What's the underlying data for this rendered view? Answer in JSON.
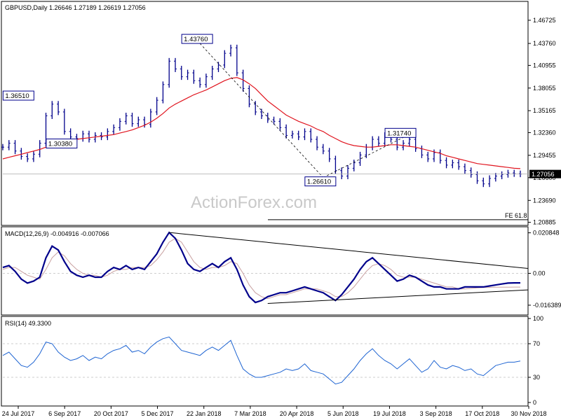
{
  "header": {
    "symbol_line": "GBPUSD,Daily  1.26646 1.27189 1.26619 1.27056"
  },
  "watermark": "ActionForex.com",
  "colors": {
    "price_bar": "#00008b",
    "ma": "#e0141e",
    "macd": "#00008b",
    "signal": "#c8a0a0",
    "rsi": "#1e64d2",
    "grid": "#bdbdbd",
    "label_bg": "#ffffff",
    "label_border": "#00008b",
    "trend_line": "#000000"
  },
  "chart_data": [
    {
      "type": "line",
      "name": "price",
      "title": "GBPUSD,Daily  1.26646 1.27189 1.26619 1.27056",
      "ylim": [
        1.2085,
        1.486
      ],
      "y_ticks": [
        "1.46725",
        "1.43760",
        "1.40955",
        "1.38055",
        "1.35165",
        "1.32360",
        "1.29455",
        "1.26600",
        "1.23690",
        "1.20885"
      ],
      "x_ticks": [
        "24 Jul 2017",
        "6 Sep 2017",
        "20 Oct 2017",
        "5 Dec 2017",
        "22 Jan 2018",
        "7 Mar 2018",
        "20 Apr 2018",
        "5 Jun 2018",
        "19 Jul 2018",
        "3 Sep 2018",
        "17 Oct 2018",
        "30 Nov 2018"
      ],
      "x": [
        0,
        4,
        8,
        12,
        16,
        20,
        24,
        28,
        32,
        36,
        40,
        44,
        48,
        52,
        56,
        60,
        64,
        68,
        72,
        76,
        80,
        84,
        88,
        92,
        96,
        100,
        104,
        108,
        112,
        116,
        120,
        124,
        128,
        132,
        136,
        140,
        144,
        148,
        152,
        156,
        160,
        164,
        168,
        172,
        176,
        180,
        184,
        188,
        192,
        196,
        200,
        204,
        208,
        212,
        216,
        220,
        224,
        228,
        232,
        236,
        240,
        244,
        248,
        252,
        256,
        260,
        264,
        268,
        272,
        276,
        280,
        284,
        288,
        292,
        296,
        300,
        304,
        308,
        312,
        316,
        320,
        324,
        328,
        332,
        336
      ],
      "close": [
        1.305,
        1.31,
        1.3,
        1.293,
        1.29,
        1.296,
        1.31,
        1.345,
        1.36,
        1.35,
        1.325,
        1.318,
        1.316,
        1.322,
        1.315,
        1.32,
        1.318,
        1.325,
        1.33,
        1.338,
        1.345,
        1.335,
        1.34,
        1.334,
        1.35,
        1.365,
        1.385,
        1.415,
        1.405,
        1.395,
        1.4,
        1.39,
        1.385,
        1.395,
        1.405,
        1.41,
        1.425,
        1.432,
        1.4,
        1.38,
        1.36,
        1.35,
        1.345,
        1.34,
        1.338,
        1.33,
        1.32,
        1.322,
        1.318,
        1.325,
        1.315,
        1.305,
        1.3,
        1.29,
        1.275,
        1.268,
        1.278,
        1.285,
        1.295,
        1.305,
        1.315,
        1.31,
        1.32,
        1.315,
        1.305,
        1.31,
        1.315,
        1.303,
        1.295,
        1.29,
        1.298,
        1.288,
        1.282,
        1.285,
        1.28,
        1.275,
        1.27,
        1.262,
        1.258,
        1.265,
        1.268,
        1.27,
        1.272,
        1.271,
        1.2706
      ],
      "ma50": [
        1.29,
        1.292,
        1.294,
        1.296,
        1.298,
        1.3,
        1.302,
        1.305,
        1.308,
        1.311,
        1.313,
        1.314,
        1.315,
        1.316,
        1.317,
        1.318,
        1.319,
        1.32,
        1.321,
        1.323,
        1.325,
        1.327,
        1.33,
        1.333,
        1.337,
        1.342,
        1.348,
        1.355,
        1.36,
        1.364,
        1.368,
        1.372,
        1.375,
        1.378,
        1.382,
        1.386,
        1.39,
        1.393,
        1.394,
        1.391,
        1.386,
        1.38,
        1.372,
        1.364,
        1.358,
        1.352,
        1.346,
        1.342,
        1.338,
        1.335,
        1.332,
        1.328,
        1.325,
        1.32,
        1.316,
        1.312,
        1.309,
        1.307,
        1.306,
        1.305,
        1.305,
        1.306,
        1.307,
        1.308,
        1.308,
        1.307,
        1.306,
        1.305,
        1.303,
        1.301,
        1.299,
        1.297,
        1.294,
        1.292,
        1.29,
        1.288,
        1.286,
        1.284,
        1.283,
        1.282,
        1.281,
        1.28,
        1.279,
        1.278,
        1.2775
      ],
      "labels": [
        {
          "text": "1.36510",
          "x": 12,
          "y": 1.3651
        },
        {
          "text": "1.30380",
          "x": 40,
          "y": 1.3038
        },
        {
          "text": "1.43760",
          "x": 128,
          "y": 1.4376
        },
        {
          "text": "1.26610",
          "x": 208,
          "y": 1.2661
        },
        {
          "text": "1.31740",
          "x": 260,
          "y": 1.3174
        }
      ],
      "current_price_label": "1.27056",
      "fe_label": "FE 61.8",
      "fe_level": 1.2122
    },
    {
      "type": "line",
      "name": "macd",
      "title": "MACD(12,26,9) -0.004916 -0.007066",
      "ylim": [
        -0.02,
        0.0225
      ],
      "y_ticks": [
        "0.020848",
        "0.00",
        "-0.016389"
      ],
      "macd": [
        0.003,
        0.004,
        0.001,
        -0.003,
        -0.005,
        -0.004,
        -0.002,
        0.008,
        0.014,
        0.012,
        0.006,
        0.001,
        -0.001,
        -0.002,
        -0.001,
        -0.002,
        -0.002,
        0.001,
        0.003,
        0.002,
        0.004,
        0.002,
        0.003,
        0.002,
        0.006,
        0.01,
        0.016,
        0.021,
        0.018,
        0.012,
        0.005,
        0.002,
        0.001,
        0.003,
        0.005,
        0.003,
        0.006,
        0.008,
        0.002,
        -0.006,
        -0.012,
        -0.015,
        -0.014,
        -0.012,
        -0.011,
        -0.01,
        -0.01,
        -0.009,
        -0.008,
        -0.007,
        -0.008,
        -0.009,
        -0.01,
        -0.012,
        -0.014,
        -0.011,
        -0.007,
        -0.003,
        0.002,
        0.006,
        0.008,
        0.005,
        0.002,
        -0.001,
        -0.004,
        -0.003,
        -0.001,
        -0.002,
        -0.004,
        -0.006,
        -0.007,
        -0.007,
        -0.008,
        -0.008,
        -0.008,
        -0.007,
        -0.007,
        -0.007,
        -0.007,
        -0.0065,
        -0.006,
        -0.0055,
        -0.005,
        -0.0049,
        -0.0049
      ],
      "signal": [
        0.002,
        0.003,
        0.003,
        0.001,
        -0.001,
        -0.002,
        -0.003,
        0.002,
        0.008,
        0.011,
        0.009,
        0.005,
        0.002,
        0.0,
        -0.001,
        -0.001,
        -0.002,
        -0.001,
        0.001,
        0.002,
        0.002,
        0.003,
        0.003,
        0.003,
        0.004,
        0.007,
        0.011,
        0.016,
        0.018,
        0.016,
        0.011,
        0.006,
        0.003,
        0.002,
        0.003,
        0.003,
        0.004,
        0.006,
        0.005,
        0.0,
        -0.006,
        -0.01,
        -0.012,
        -0.013,
        -0.012,
        -0.011,
        -0.011,
        -0.01,
        -0.009,
        -0.008,
        -0.008,
        -0.008,
        -0.009,
        -0.01,
        -0.012,
        -0.012,
        -0.01,
        -0.007,
        -0.003,
        0.001,
        0.004,
        0.005,
        0.004,
        0.002,
        -0.001,
        -0.002,
        -0.002,
        -0.002,
        -0.003,
        -0.004,
        -0.005,
        -0.006,
        -0.007,
        -0.007,
        -0.008,
        -0.008,
        -0.0078,
        -0.0075,
        -0.0073,
        -0.0072,
        -0.0071,
        -0.0071,
        -0.0071,
        -0.00707,
        -0.00707
      ],
      "zero_label": "0.00"
    },
    {
      "type": "line",
      "name": "rsi",
      "title": "RSI(14) 49.3300",
      "ylim": [
        0,
        100
      ],
      "y_ticks": [
        "100",
        "70",
        "30",
        "0"
      ],
      "levels": [
        70,
        30
      ],
      "values": [
        56,
        60,
        52,
        44,
        42,
        48,
        58,
        72,
        70,
        60,
        54,
        50,
        52,
        56,
        50,
        54,
        52,
        58,
        62,
        64,
        68,
        60,
        62,
        58,
        66,
        72,
        76,
        78,
        70,
        62,
        60,
        58,
        56,
        62,
        66,
        62,
        68,
        74,
        56,
        40,
        34,
        30,
        30,
        32,
        34,
        36,
        40,
        38,
        40,
        46,
        38,
        36,
        34,
        28,
        22,
        24,
        32,
        40,
        50,
        58,
        64,
        56,
        50,
        46,
        40,
        46,
        52,
        44,
        36,
        40,
        50,
        42,
        40,
        44,
        42,
        38,
        40,
        34,
        32,
        38,
        44,
        46,
        48,
        48,
        49.33
      ]
    }
  ]
}
